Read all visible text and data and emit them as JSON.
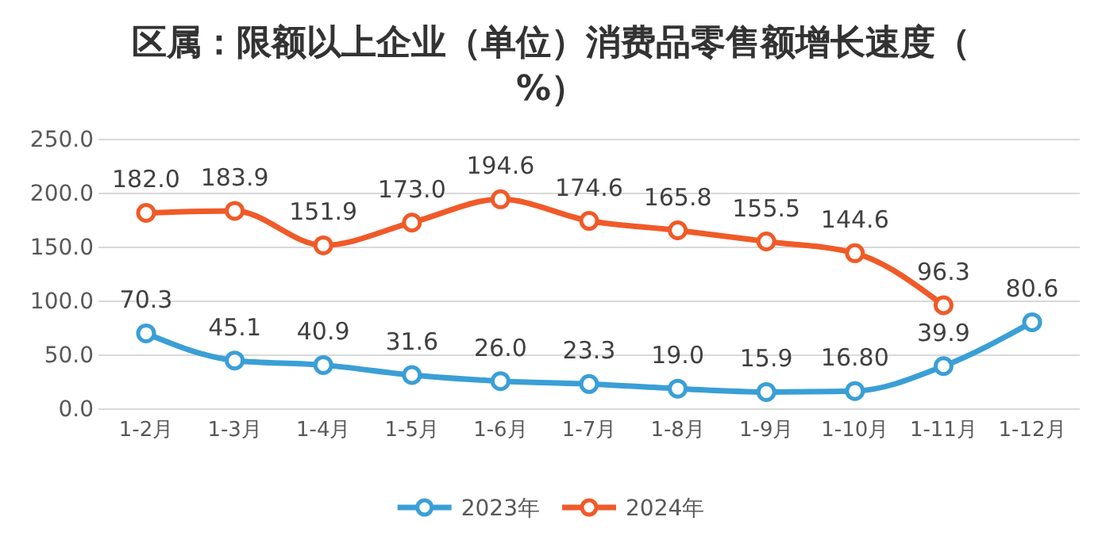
{
  "chart_data": {
    "type": "line",
    "title": "区属：限额以上企业（单位）消费品零售额增长速度（%）",
    "categories": [
      "1-2月",
      "1-3月",
      "1-4月",
      "1-5月",
      "1-6月",
      "1-7月",
      "1-8月",
      "1-9月",
      "1-10月",
      "1-11月",
      "1-12月"
    ],
    "series": [
      {
        "name": "2023年",
        "color": "#3a9fd6",
        "values": [
          70.3,
          45.1,
          40.9,
          31.6,
          26.0,
          23.3,
          19.0,
          15.9,
          16.8,
          39.9,
          80.6
        ],
        "value_labels": [
          "70.3",
          "45.1",
          "40.9",
          "31.6",
          "26.0",
          "23.3",
          "19.0",
          "15.9",
          "16.80",
          "39.9",
          "80.6"
        ]
      },
      {
        "name": "2024年",
        "color": "#f05a28",
        "values": [
          182.0,
          183.9,
          151.9,
          173.0,
          194.6,
          174.6,
          165.8,
          155.5,
          144.6,
          96.3,
          null
        ],
        "value_labels": [
          "182.0",
          "183.9",
          "151.9",
          "173.0",
          "194.6",
          "174.6",
          "165.8",
          "155.5",
          "144.6",
          "96.3",
          null
        ]
      }
    ],
    "ylim": [
      0,
      250
    ],
    "yticks": [
      {
        "value": 0,
        "label": "0.0"
      },
      {
        "value": 50,
        "label": "50.0"
      },
      {
        "value": 100,
        "label": "100.0"
      },
      {
        "value": 150,
        "label": "150.0"
      },
      {
        "value": 200,
        "label": "200.0"
      },
      {
        "value": 250,
        "label": "250.0"
      }
    ],
    "grid": "y",
    "legend": "bottom",
    "marker": "circle",
    "line_style": "solid"
  }
}
